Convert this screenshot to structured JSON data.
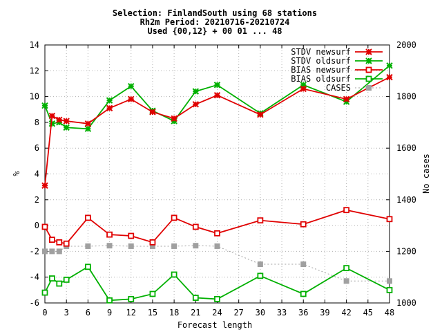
{
  "header": {
    "line1": "Selection: FinlandSouth using    68 stations",
    "line2": "Rh2m   Period: 20210716-20210724",
    "line3": "Used {00,12} + 00 01 ... 48"
  },
  "chart_data": {
    "type": "line",
    "xlabel": "Forecast length",
    "ylabel": "%",
    "y2label": "No cases",
    "xlim": [
      0,
      48
    ],
    "ylim": [
      -6,
      14
    ],
    "y2lim": [
      1000,
      2000
    ],
    "x_ticks": [
      0,
      3,
      6,
      9,
      12,
      15,
      18,
      21,
      24,
      27,
      30,
      33,
      36,
      39,
      42,
      45,
      48
    ],
    "y_ticks": [
      -6,
      -4,
      -2,
      0,
      2,
      4,
      6,
      8,
      10,
      12,
      14
    ],
    "y2_ticks": [
      1000,
      1200,
      1400,
      1600,
      1800,
      2000
    ],
    "grid": true,
    "legend_position": "top-right",
    "series": [
      {
        "name": "STDV newsurf",
        "axis": "y",
        "color": "#e00000",
        "marker": "star",
        "x": [
          0,
          1,
          2,
          3,
          6,
          9,
          12,
          15,
          18,
          21,
          24,
          30,
          36,
          42,
          48
        ],
        "values": [
          3.1,
          8.5,
          8.2,
          8.1,
          7.9,
          9.1,
          9.8,
          8.8,
          8.3,
          9.4,
          10.1,
          8.6,
          10.6,
          9.8,
          11.5
        ]
      },
      {
        "name": "STDV oldsurf",
        "axis": "y",
        "color": "#00b000",
        "marker": "star",
        "x": [
          0,
          1,
          2,
          3,
          6,
          9,
          12,
          15,
          18,
          21,
          24,
          30,
          36,
          42,
          48
        ],
        "values": [
          9.3,
          7.9,
          8.0,
          7.6,
          7.5,
          9.7,
          10.8,
          8.9,
          8.1,
          10.4,
          10.9,
          8.7,
          10.9,
          9.6,
          12.4
        ]
      },
      {
        "name": "BIAS newsurf",
        "axis": "y",
        "color": "#e00000",
        "marker": "square",
        "x": [
          0,
          1,
          2,
          3,
          6,
          9,
          12,
          15,
          18,
          21,
          24,
          30,
          36,
          42,
          48
        ],
        "values": [
          -0.1,
          -1.1,
          -1.3,
          -1.4,
          0.6,
          -0.7,
          -0.8,
          -1.3,
          0.6,
          -0.1,
          -0.6,
          0.4,
          0.1,
          1.2,
          0.5
        ]
      },
      {
        "name": "BIAS oldsurf",
        "axis": "y",
        "color": "#00b000",
        "marker": "square",
        "x": [
          0,
          1,
          2,
          3,
          6,
          9,
          12,
          15,
          18,
          21,
          24,
          30,
          36,
          42,
          48
        ],
        "values": [
          -5.2,
          -4.1,
          -4.5,
          -4.2,
          -3.2,
          -5.8,
          -5.7,
          -5.3,
          -3.8,
          -5.6,
          -5.7,
          -3.9,
          -5.3,
          -3.3,
          -5.0
        ]
      },
      {
        "name": "CASES",
        "axis": "y2",
        "color": "#a0a0a0",
        "marker": "filled-square",
        "dotted": true,
        "x": [
          0,
          1,
          2,
          3,
          6,
          9,
          12,
          15,
          18,
          21,
          24,
          30,
          36,
          42,
          48
        ],
        "values": [
          1200,
          1200,
          1200,
          1220,
          1220,
          1222,
          1220,
          1220,
          1220,
          1222,
          1220,
          1150,
          1150,
          1085,
          1085
        ]
      }
    ]
  }
}
